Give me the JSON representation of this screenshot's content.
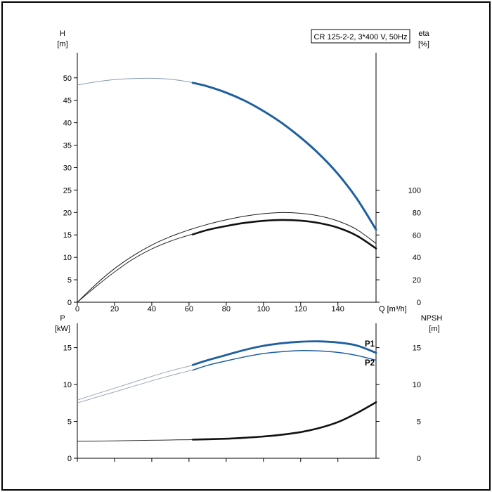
{
  "window": {
    "background": "#ffffff",
    "border_color": "#000000"
  },
  "colors": {
    "curve_blue": "#1f5fa0",
    "curve_black": "#111111",
    "pre_duty_gray": "#879cb0"
  },
  "chart_data": [
    {
      "type": "line",
      "title": "CR 125-2-2, 3*400 V, 50Hz",
      "grid": false,
      "legend": "none",
      "x_axis": {
        "label": "Q [m³/h]",
        "min": 0,
        "max": 160.5,
        "ticks": [
          0,
          20,
          40,
          60,
          80,
          100,
          120,
          140
        ]
      },
      "y_left": {
        "label": "H",
        "unit": "[m]",
        "min": 0,
        "max": 55.6,
        "ticks": [
          0,
          5,
          10,
          15,
          20,
          25,
          30,
          35,
          40,
          45,
          50
        ]
      },
      "y_right": {
        "label": "eta",
        "unit": "[%]",
        "min": 0,
        "max": 222.6,
        "ticks": [
          0,
          20,
          40,
          60,
          80,
          100
        ]
      },
      "series": [
        {
          "name": "head-curve",
          "label": "",
          "axis": "left",
          "split_at": 62,
          "color": "#1f5fa0",
          "width": 3,
          "pre_color": "#879cb0",
          "pre_width": 1,
          "x": [
            0,
            10,
            20,
            30,
            40,
            50,
            60,
            62,
            70,
            80,
            90,
            100,
            110,
            120,
            130,
            140,
            150,
            160.5
          ],
          "y": [
            48.4,
            49.1,
            49.6,
            49.85,
            49.9,
            49.7,
            49.1,
            48.9,
            48.1,
            46.7,
            44.9,
            42.6,
            39.9,
            36.7,
            33.0,
            28.6,
            23.2,
            16.2
          ]
        },
        {
          "name": "eta-nominal",
          "label": "",
          "axis": "right",
          "split_at": null,
          "color": "#1a1a1a",
          "width": 1,
          "x": [
            0,
            10,
            20,
            30,
            40,
            50,
            60,
            70,
            80,
            90,
            100,
            110,
            120,
            130,
            140,
            150,
            160.5
          ],
          "y": [
            0,
            16,
            30,
            41.5,
            51,
            58.5,
            64.5,
            69.5,
            73.5,
            76.8,
            79,
            80,
            79.3,
            77,
            72.5,
            65,
            52.5
          ]
        },
        {
          "name": "eta-duty",
          "label": "",
          "axis": "right",
          "split_at": 62,
          "color": "#111111",
          "width": 2.6,
          "pre_color": "#2a2a2a",
          "pre_width": 1,
          "x": [
            0,
            10,
            20,
            30,
            40,
            50,
            60,
            62,
            70,
            80,
            90,
            100,
            110,
            120,
            130,
            140,
            150,
            160.5
          ],
          "y": [
            0,
            14,
            27,
            38.5,
            47.5,
            54.5,
            59.8,
            60.5,
            64.5,
            68,
            70.8,
            72.6,
            73.4,
            72.8,
            70.6,
            66.5,
            59.5,
            48
          ]
        }
      ]
    },
    {
      "type": "line",
      "title": "",
      "grid": false,
      "legend": "inline",
      "x_axis": {
        "label": "",
        "min": 0,
        "max": 160.5,
        "ticks": [
          0,
          20,
          40,
          60,
          80,
          100,
          120,
          140
        ]
      },
      "y_left": {
        "label": "P",
        "unit": "[kW]",
        "min": 0,
        "max": 18.3,
        "ticks": [
          0,
          5,
          10,
          15
        ]
      },
      "y_right": {
        "label": "NPSH",
        "unit": "[m]",
        "min": 0,
        "max": 18.3,
        "ticks": [
          0,
          5,
          10,
          15
        ]
      },
      "series": [
        {
          "name": "P1",
          "label": "P1",
          "axis": "left",
          "split_at": 62,
          "color": "#1f5fa0",
          "width": 2.8,
          "pre_color": "#9aa8b8",
          "pre_width": 1,
          "x": [
            0,
            10,
            20,
            30,
            40,
            50,
            60,
            62,
            70,
            80,
            90,
            100,
            110,
            120,
            130,
            140,
            150,
            160.5
          ],
          "y": [
            7.9,
            8.7,
            9.5,
            10.3,
            11.1,
            11.85,
            12.5,
            12.65,
            13.3,
            14.0,
            14.7,
            15.25,
            15.6,
            15.8,
            15.85,
            15.7,
            15.3,
            14.3
          ]
        },
        {
          "name": "P2",
          "label": "P2",
          "axis": "left",
          "split_at": 62,
          "color": "#1f5fa0",
          "width": 1.5,
          "pre_color": "#9aa8b8",
          "pre_width": 1,
          "x": [
            0,
            10,
            20,
            30,
            40,
            50,
            60,
            62,
            70,
            80,
            90,
            100,
            110,
            120,
            130,
            140,
            150,
            160.5
          ],
          "y": [
            7.5,
            8.25,
            9.0,
            9.75,
            10.5,
            11.2,
            11.85,
            11.95,
            12.6,
            13.2,
            13.75,
            14.2,
            14.45,
            14.6,
            14.55,
            14.35,
            13.95,
            13.3
          ]
        },
        {
          "name": "NPSH",
          "label": "",
          "axis": "right",
          "split_at": 62,
          "color": "#111111",
          "width": 2.6,
          "pre_color": "#2a2a2a",
          "pre_width": 1,
          "x": [
            0,
            10,
            20,
            30,
            40,
            50,
            60,
            62,
            70,
            80,
            90,
            100,
            110,
            120,
            130,
            140,
            150,
            160.5
          ],
          "y": [
            2.3,
            2.33,
            2.36,
            2.4,
            2.44,
            2.48,
            2.52,
            2.53,
            2.58,
            2.65,
            2.78,
            2.95,
            3.2,
            3.55,
            4.1,
            4.9,
            6.1,
            7.6
          ]
        }
      ]
    }
  ]
}
